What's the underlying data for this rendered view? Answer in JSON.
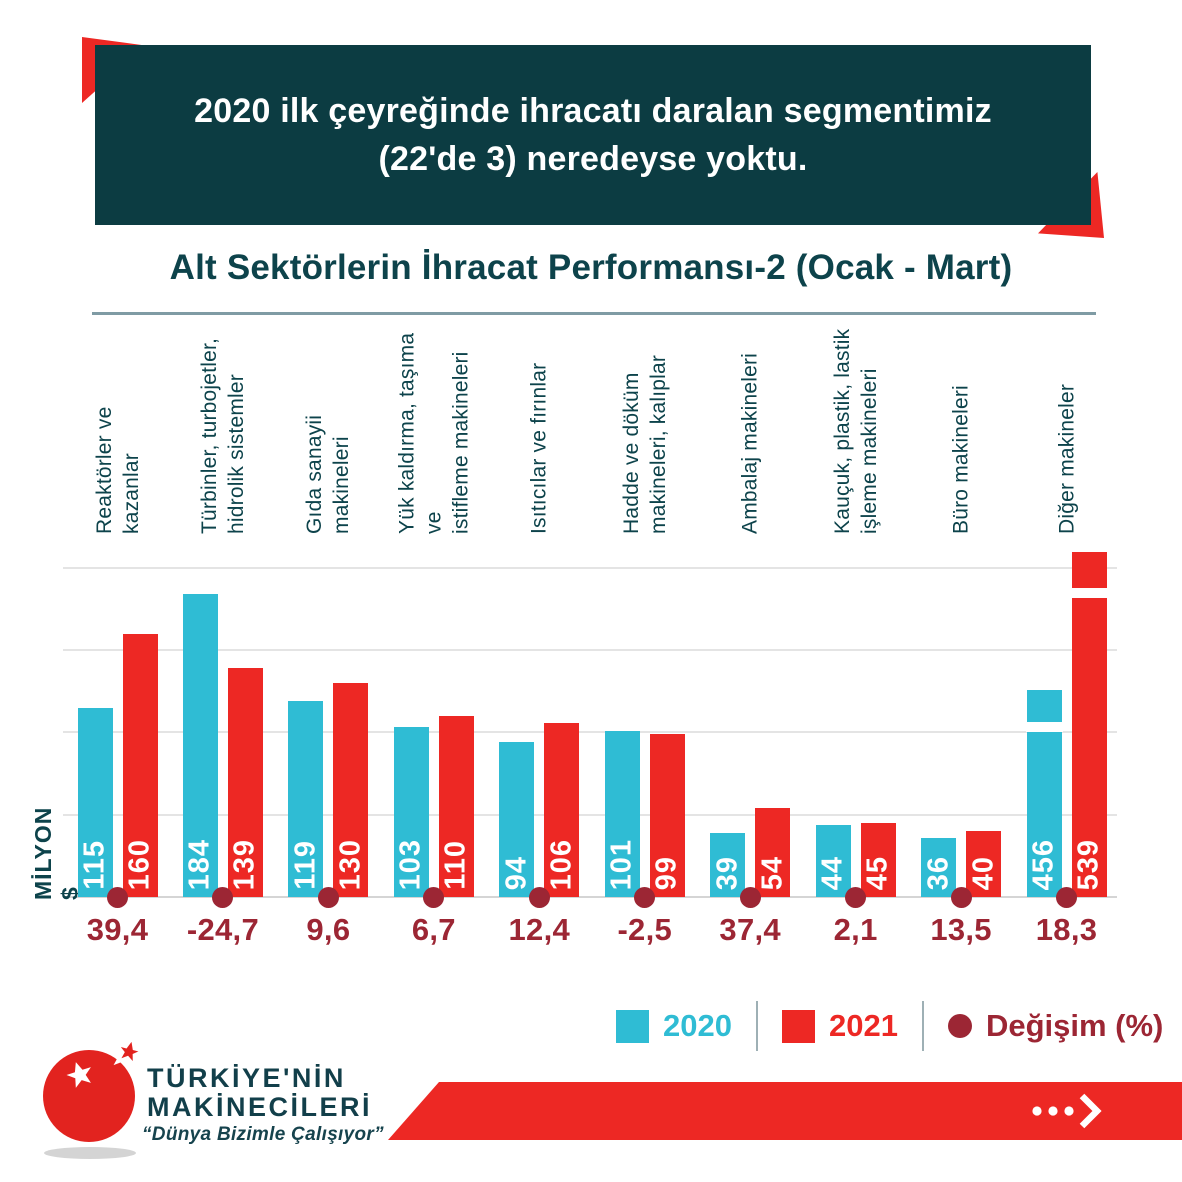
{
  "header": {
    "line1": "2020 ilk çeyreğinde ihracatı daralan segmentimiz",
    "line2": "(22'de 3) neredeyse yoktu."
  },
  "chart_data": {
    "type": "bar",
    "title": "Alt Sektörlerin İhracat Performansı-2 (Ocak - Mart)",
    "ylabel": "MİLYON $",
    "ylim": [
      0,
      200
    ],
    "gridline_step": 50,
    "grid": "horizontal",
    "axis_break_note": "bars 456 and 539 drawn with axis break",
    "categories": [
      "Reaktörler ve kazanlar",
      "Türbinler, turbojetler,\nhidrolik sistemler",
      "Gıda sanayii makineleri",
      "Yük kaldırma, taşıma ve\nistifleme makineleri",
      "Isıtıcılar ve fırınlar",
      "Hadde ve döküm\nmakineleri, kalıplar",
      "Ambalaj makineleri",
      "Kauçuk, plastik, lastik\nişleme makineleri",
      "Büro makineleri",
      "Diğer makineler"
    ],
    "series": [
      {
        "name": "2020",
        "color": "#2fbcd4",
        "values": [
          115,
          184,
          119,
          103,
          94,
          101,
          39,
          44,
          36,
          456
        ]
      },
      {
        "name": "2021",
        "color": "#ed2824",
        "values": [
          160,
          139,
          130,
          110,
          106,
          99,
          54,
          45,
          40,
          539
        ]
      }
    ],
    "change_pct_labels": [
      "39,4",
      "-24,7",
      "9,6",
      "6,7",
      "12,4",
      "-2,5",
      "37,4",
      "2,1",
      "13,5",
      "18,3"
    ],
    "legend_position": "bottom-right"
  },
  "legend": {
    "change_label": "Değişim (%)"
  },
  "colors": {
    "accent_cyan": "#2fbcd4",
    "accent_red": "#ed2824",
    "accent_maroon": "#9c2634",
    "header_teal": "#0c3c42",
    "text_teal": "#0d434b"
  },
  "logo": {
    "line1": "TÜRKİYE'NİN",
    "line2": "MAKİNECİLERİ",
    "slogan": "“Dünya Bizimle Çalışıyor”"
  }
}
